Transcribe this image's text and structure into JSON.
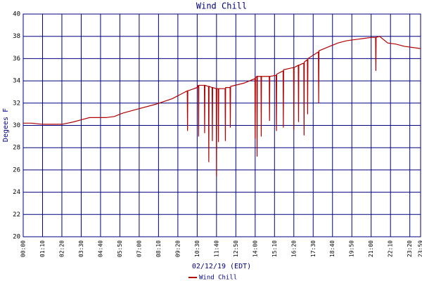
{
  "chart_data": {
    "type": "line",
    "title": "Wind Chill",
    "y_label": "Degees F",
    "x_label": "02/12/19 (EDT)",
    "x": [
      0,
      30,
      70,
      140,
      180,
      210,
      240,
      300,
      330,
      360,
      420,
      480,
      540,
      594,
      595,
      596,
      630,
      634,
      635,
      636,
      656,
      657,
      658,
      671,
      672,
      673,
      684,
      685,
      686,
      699,
      700,
      701,
      706,
      707,
      708,
      731,
      732,
      733,
      749,
      750,
      751,
      800,
      839,
      840,
      841,
      846,
      847,
      848,
      861,
      862,
      863,
      891,
      892,
      893,
      916,
      917,
      918,
      941,
      942,
      943,
      979,
      980,
      981,
      996,
      997,
      998,
      1016,
      1017,
      1018,
      1029,
      1030,
      1031,
      1069,
      1070,
      1071,
      1110,
      1140,
      1170,
      1200,
      1230,
      1260,
      1276,
      1277,
      1278,
      1290,
      1320,
      1350,
      1380,
      1439
    ],
    "series": [
      {
        "name": "Wind Chill",
        "color": "#b00000",
        "values": [
          30.2,
          30.2,
          30.1,
          30.1,
          30.3,
          30.5,
          30.7,
          30.7,
          30.8,
          31.1,
          31.5,
          31.9,
          32.4,
          33.1,
          29.5,
          33.1,
          33.4,
          33.6,
          29.0,
          33.6,
          33.6,
          29.3,
          33.6,
          33.5,
          26.7,
          33.5,
          33.4,
          28.6,
          33.4,
          33.3,
          25.4,
          33.3,
          33.3,
          28.5,
          33.3,
          33.3,
          28.6,
          33.4,
          33.4,
          29.8,
          33.5,
          33.8,
          34.2,
          28.8,
          34.3,
          34.4,
          27.2,
          34.4,
          34.4,
          29.0,
          34.4,
          34.4,
          30.4,
          34.4,
          34.5,
          29.5,
          34.6,
          34.9,
          29.8,
          35.0,
          35.2,
          29.6,
          35.2,
          35.4,
          30.3,
          35.4,
          35.6,
          29.1,
          35.7,
          35.9,
          31.0,
          36.0,
          36.6,
          32.0,
          36.7,
          37.1,
          37.4,
          37.6,
          37.7,
          37.8,
          37.9,
          37.9,
          34.9,
          37.9,
          38.0,
          37.4,
          37.3,
          37.1,
          36.9
        ]
      }
    ],
    "xlim": [
      0,
      1439
    ],
    "xticks": [
      {
        "value": 0,
        "label": "00:00"
      },
      {
        "value": 70,
        "label": "01:10"
      },
      {
        "value": 140,
        "label": "02:20"
      },
      {
        "value": 210,
        "label": "03:30"
      },
      {
        "value": 280,
        "label": "04:40"
      },
      {
        "value": 350,
        "label": "05:50"
      },
      {
        "value": 420,
        "label": "07:00"
      },
      {
        "value": 490,
        "label": "08:10"
      },
      {
        "value": 560,
        "label": "09:20"
      },
      {
        "value": 630,
        "label": "10:30"
      },
      {
        "value": 700,
        "label": "11:40"
      },
      {
        "value": 770,
        "label": "12:50"
      },
      {
        "value": 840,
        "label": "14:00"
      },
      {
        "value": 910,
        "label": "15:10"
      },
      {
        "value": 980,
        "label": "16:20"
      },
      {
        "value": 1050,
        "label": "17:30"
      },
      {
        "value": 1120,
        "label": "18:40"
      },
      {
        "value": 1190,
        "label": "19:50"
      },
      {
        "value": 1260,
        "label": "21:00"
      },
      {
        "value": 1330,
        "label": "22:10"
      },
      {
        "value": 1400,
        "label": "23:20"
      },
      {
        "value": 1439,
        "label": "23:59"
      }
    ],
    "ylim": [
      20,
      40
    ],
    "yticks": [
      20,
      22,
      24,
      26,
      28,
      30,
      32,
      34,
      36,
      38,
      40
    ],
    "grid": true
  }
}
